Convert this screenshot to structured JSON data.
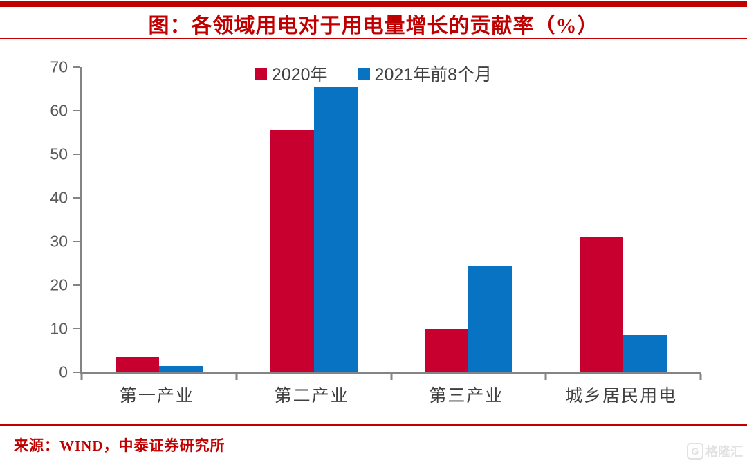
{
  "header": {
    "title": "图：各领域用电对于用电量增长的贡献率（%）"
  },
  "colors": {
    "accent_red": "#C00000",
    "bar_red": "#C70030",
    "bar_blue": "#0773C2",
    "axis_gray": "#848484",
    "tick_text_gray": "#595959"
  },
  "chart_data": {
    "type": "bar",
    "title": "图：各领域用电对于用电量增长的贡献率（%）",
    "categories": [
      "第一产业",
      "第二产业",
      "第三产业",
      "城乡居民用电"
    ],
    "series": [
      {
        "name": "2020年",
        "color": "#C70030",
        "values": [
          3.5,
          55.5,
          10,
          31
        ]
      },
      {
        "name": "2021年前8个月",
        "color": "#0773C2",
        "values": [
          1.5,
          65.5,
          24.5,
          8.5
        ]
      }
    ],
    "xlabel": "",
    "ylabel": "",
    "ylim": [
      0,
      70
    ],
    "yticks": [
      0,
      10,
      20,
      30,
      40,
      50,
      60,
      70
    ],
    "grid": false,
    "legend_position": "top-center"
  },
  "footer": {
    "source": "来源：WIND，中泰证券研究所",
    "watermark_icon": "G",
    "watermark_text": "格隆汇"
  }
}
